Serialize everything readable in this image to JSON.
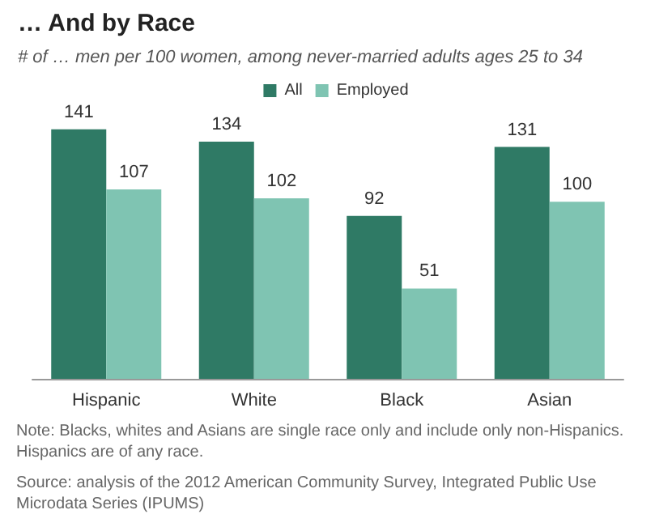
{
  "chart_data": {
    "type": "bar",
    "title": "… And by Race",
    "subtitle": "# of … men per 100 women, among never-married adults ages 25 to 34",
    "categories": [
      "Hispanic",
      "White",
      "Black",
      "Asian"
    ],
    "series": [
      {
        "name": "All",
        "color": "#2f7a65",
        "values": [
          141,
          134,
          92,
          131
        ]
      },
      {
        "name": "Employed",
        "color": "#7fc4b2",
        "values": [
          107,
          102,
          51,
          100
        ]
      }
    ],
    "data_labels": true,
    "legend": "top",
    "annotations": [
      "Note: Blacks, whites and Asians are single race only and include only non-Hispanics. Hispanics are of any race.",
      "Source: analysis of the 2012 American Community Survey, Integrated Public Use Microdata Series (IPUMS)"
    ]
  }
}
